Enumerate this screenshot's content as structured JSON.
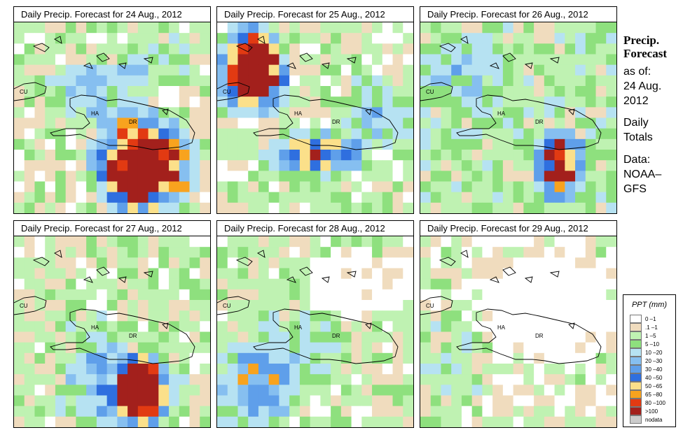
{
  "panels": [
    {
      "title": "Daily Precip. Forecast for  24 Aug., 2012"
    },
    {
      "title": "Daily Precip. Forecast for  25 Aug., 2012"
    },
    {
      "title": "Daily Precip. Forecast for  26 Aug., 2012"
    },
    {
      "title": "Daily Precip. Forecast for  27 Aug., 2012"
    },
    {
      "title": "Daily Precip. Forecast for  28 Aug., 2012"
    },
    {
      "title": "Daily Precip. Forecast for  29 Aug., 2012"
    }
  ],
  "map_labels": {
    "cu": "CU",
    "ha": "HA",
    "dr": "DR"
  },
  "side": {
    "title_line1": "Precip.",
    "title_line2": "Forecast",
    "asof_line1": "as of:",
    "asof_line2": "24 Aug.",
    "asof_line3": "2012",
    "totals_line1": "Daily",
    "totals_line2": "Totals",
    "data_line1": "Data:",
    "data_line2": "NOAA–",
    "data_line3": "GFS"
  },
  "legend": {
    "title": "PPT (mm)",
    "classes": [
      {
        "label": "0 –1",
        "color": "#ffffff"
      },
      {
        "label": ".1 –1",
        "color": "#f0dcbe"
      },
      {
        "label": "1 –5",
        "color": "#bff2b2"
      },
      {
        "label": "5 –10",
        "color": "#8ee07e"
      },
      {
        "label": "10 –20",
        "color": "#b6e2f2"
      },
      {
        "label": "20 –30",
        "color": "#86bff0"
      },
      {
        "label": "30 –40",
        "color": "#5f9fea"
      },
      {
        "label": "40 –50",
        "color": "#2f6fdf"
      },
      {
        "label": "50 –65",
        "color": "#fbe08a"
      },
      {
        "label": "65 –80",
        "color": "#f8a31e"
      },
      {
        "label": "80 –100",
        "color": "#e23a12"
      },
      {
        "label": ">100",
        "color": "#a3201c"
      },
      {
        "label": "nodata",
        "color": "#cccccc"
      }
    ]
  }
}
